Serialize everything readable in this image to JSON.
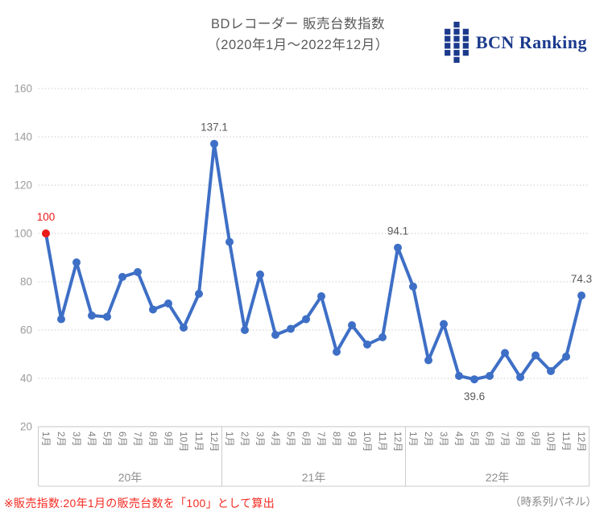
{
  "header": {
    "title_line1": "BDレコーダー 販売台数指数",
    "title_line2": "（2020年1月～2022年12月）",
    "logo_text": "BCN Ranking",
    "logo_color": "#1b3a8c"
  },
  "chart_data": {
    "type": "line",
    "title": "BDレコーダー 販売台数指数（2020年1月～2022年12月）",
    "ylim": [
      20,
      160
    ],
    "yticks": [
      160,
      140,
      120,
      100,
      80,
      60,
      40,
      20
    ],
    "grid": "dotted horizontal gridlines",
    "legend": "none",
    "line_color": "#3e6fc6",
    "first_point_color": "#ea1a17",
    "month_labels": [
      "1月",
      "2月",
      "3月",
      "4月",
      "5月",
      "6月",
      "7月",
      "8月",
      "9月",
      "10月",
      "11月",
      "12月"
    ],
    "years": [
      {
        "label": "20年",
        "values": [
          100,
          64.5,
          88,
          66,
          65.5,
          82,
          84,
          68.5,
          71,
          61,
          75,
          137.1
        ]
      },
      {
        "label": "21年",
        "values": [
          96.5,
          60,
          83,
          58,
          60.5,
          64.5,
          74,
          51,
          62,
          54,
          57,
          94.1
        ]
      },
      {
        "label": "22年",
        "values": [
          78,
          47.5,
          62.5,
          41,
          39.6,
          41,
          50.5,
          40.5,
          49.5,
          43,
          49,
          74.3
        ]
      }
    ],
    "annotations": [
      {
        "point": 0,
        "text": "100",
        "color": "#ea1a17",
        "position": "above"
      },
      {
        "point": 11,
        "text": "137.1",
        "color": "#595959",
        "position": "above"
      },
      {
        "point": 23,
        "text": "94.1",
        "color": "#595959",
        "position": "above"
      },
      {
        "point": 28,
        "text": "39.6",
        "color": "#595959",
        "position": "below"
      },
      {
        "point": 35,
        "text": "74.3",
        "color": "#595959",
        "position": "above"
      }
    ]
  },
  "footer": {
    "note": "※販売指数:20年1月の販売台数を「100」として算出",
    "note_color": "#f42a21",
    "right_label": "（時系列パネル）"
  }
}
